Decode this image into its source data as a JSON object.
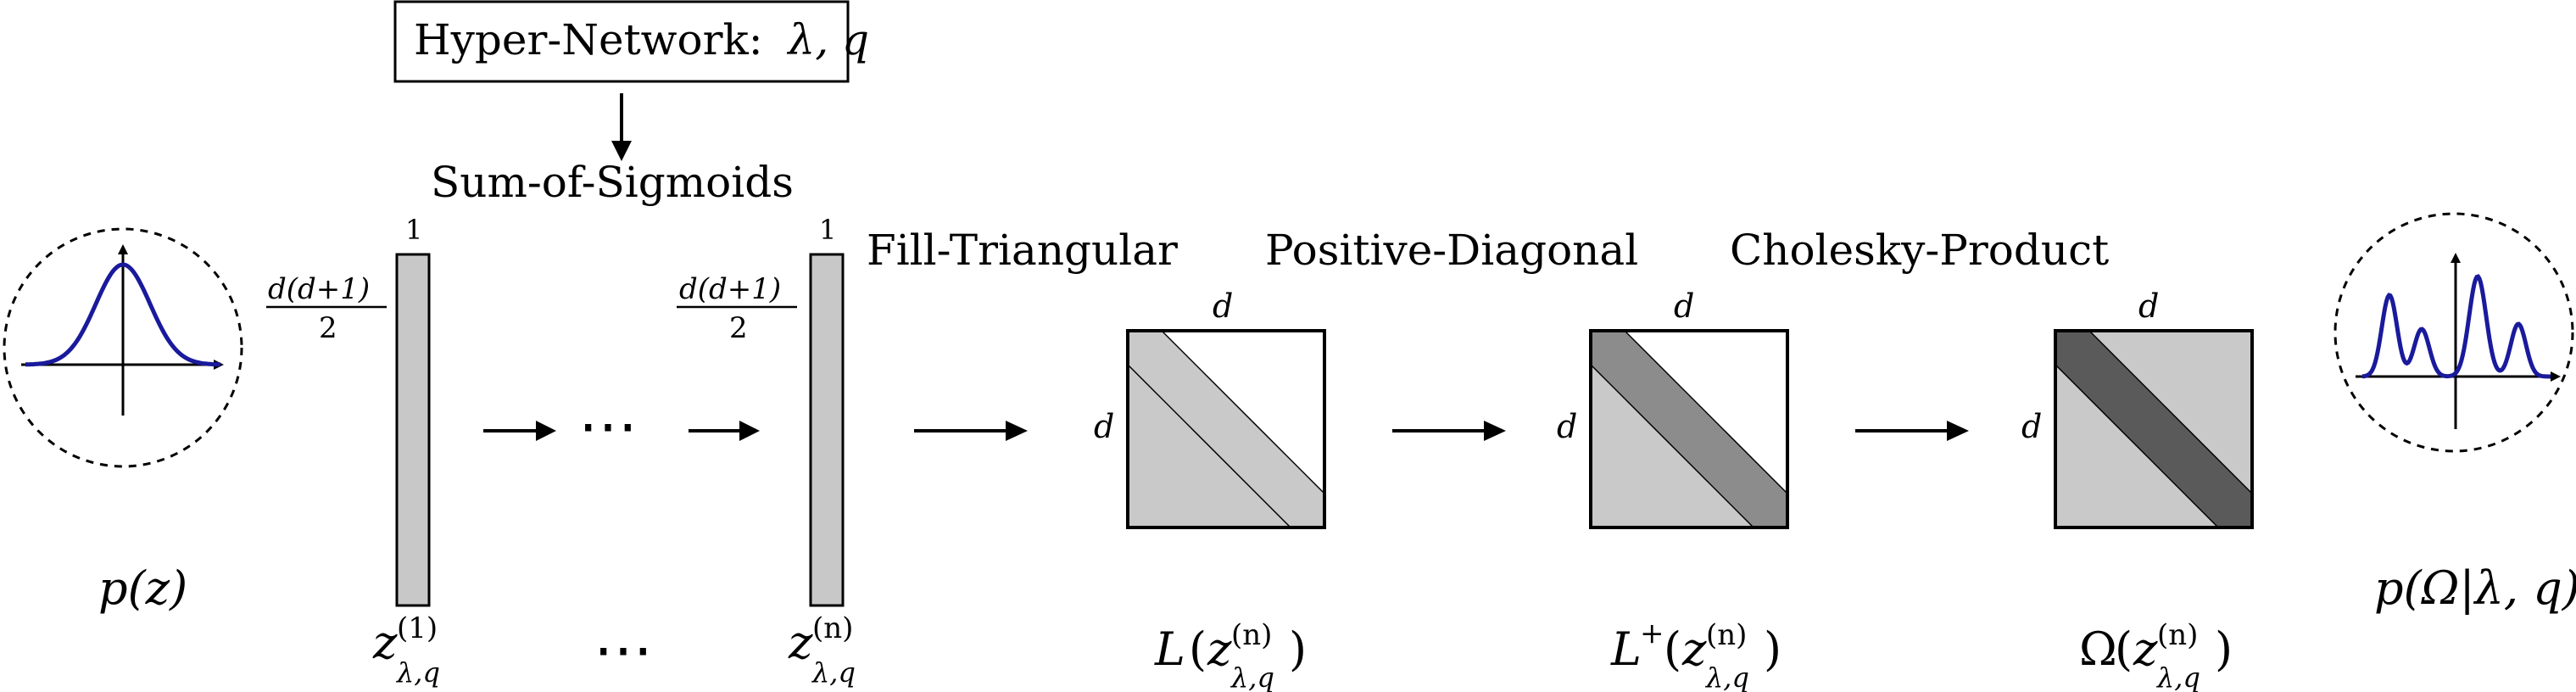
{
  "hypernetwork": {
    "label": "Hyper-Network:",
    "params": "λ, q"
  },
  "steps": {
    "sum_of_sigmoids": "Sum-of-Sigmoids",
    "fill_triangular": "Fill-Triangular",
    "positive_diagonal": "Positive-Diagonal",
    "cholesky_product": "Cholesky-Product"
  },
  "dims": {
    "vector_top": "1",
    "vector_side_numer": "d(d+1)",
    "vector_side_denom": "2",
    "matrix_dim": "d"
  },
  "ellipsis": "⋯",
  "labels": {
    "prior": {
      "func": "p",
      "open": "(",
      "arg": "z",
      "close": ")"
    },
    "z1": {
      "base": "z",
      "sup": "(1)",
      "sub": "λ,q"
    },
    "zn": {
      "base": "z",
      "sup": "(n)",
      "sub": "λ,q"
    },
    "L": {
      "func": "L",
      "sup_func": "",
      "base": "z",
      "sup": "(n)",
      "sub": "λ,q"
    },
    "Lplus": {
      "func": "L",
      "sup_func": "+",
      "base": "z",
      "sup": "(n)",
      "sub": "λ,q"
    },
    "Omega": {
      "func": "Ω",
      "sup_func": "",
      "base": "z",
      "sup": "(n)",
      "sub": "λ,q"
    },
    "posterior": {
      "func": "p",
      "open": "(",
      "arg": "Ω",
      "bar": "|",
      "cond": "λ, q",
      "close": ")"
    }
  },
  "colors": {
    "curve": "#1a1a9c",
    "vector_fill": "#c8c8c8",
    "lower_fill": "#c9c9c9",
    "diag_positive": "#8c8c8c",
    "diag_cholesky": "#5a5a5a"
  }
}
